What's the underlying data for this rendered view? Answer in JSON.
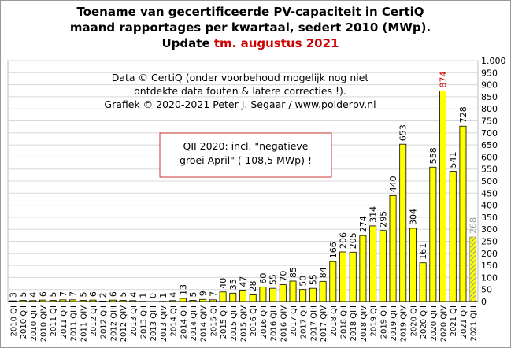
{
  "chart_data": {
    "type": "bar",
    "title_lines": [
      "Toename van gecertificeerde PV-capaciteit  in CertiQ",
      "maand rapportages per kwartaal, sedert 2010 (MWp)."
    ],
    "update_prefix": "Update",
    "update_text": "tm. augustus 2021",
    "notes": [
      "Data © CertiQ (onder voorbehoud mogelijk  nog niet",
      "ontdekte data fouten & latere correcties !).",
      "Grafiek  © 2020-2021 Peter J. Segaar / www.polderpv.nl"
    ],
    "box_notes": [
      "QII 2020: incl. \"negatieve",
      "groei April\"  (-108,5 MWp) !"
    ],
    "categories": [
      "2010 QI",
      "2010 QII",
      "2010 QIII",
      "2010 QIV",
      "2011 QI",
      "2011 QII",
      "2011 QIII",
      "2011 QIV",
      "2012 QI",
      "2012 QII",
      "2012 QIII",
      "2012 QIV",
      "2013 QI",
      "2013 QII",
      "2013 QIII",
      "2013 QIV",
      "2014 QI",
      "2014 QII",
      "2014 QIII",
      "2014 QIV",
      "2015 QI",
      "2015 QII",
      "2015 QIII",
      "2015 QIV",
      "2016 QI",
      "2016 QII",
      "2016 QIII",
      "2016 QIV",
      "2017 QI",
      "2017 QII",
      "2017 QIII",
      "2017 QIV",
      "2018 QI",
      "2018 QII",
      "2018 QIII",
      "2018 QIV",
      "2019 QI",
      "2019 QII",
      "2019 QIII",
      "2019 QIV",
      "2020 QI",
      "2020 QII",
      "2020 QIII",
      "2020 QIV",
      "2021 QI",
      "2021 QII",
      "2021 QIII"
    ],
    "values": [
      3,
      5,
      4,
      6,
      5,
      7,
      7,
      5,
      6,
      2,
      6,
      5,
      4,
      1,
      0,
      1,
      4,
      13,
      5,
      9,
      7,
      40,
      35,
      47,
      28,
      60,
      55,
      70,
      85,
      50,
      55,
      84,
      166,
      206,
      205,
      274,
      314,
      295,
      440,
      653,
      304,
      161,
      558,
      874,
      541,
      728,
      268
    ],
    "color": "#ffff00",
    "label_color": "#000000",
    "highlight_index": 43,
    "highlight_color": "#cc0000",
    "partial_index": 46,
    "partial_color": "#999999",
    "ylim": [
      0,
      1000
    ],
    "yticks": [
      0,
      50,
      100,
      150,
      200,
      250,
      300,
      350,
      400,
      450,
      500,
      550,
      600,
      650,
      700,
      750,
      800,
      850,
      900,
      950,
      {
        "value": 1000,
        "label": "1.000"
      }
    ],
    "grid": true
  }
}
